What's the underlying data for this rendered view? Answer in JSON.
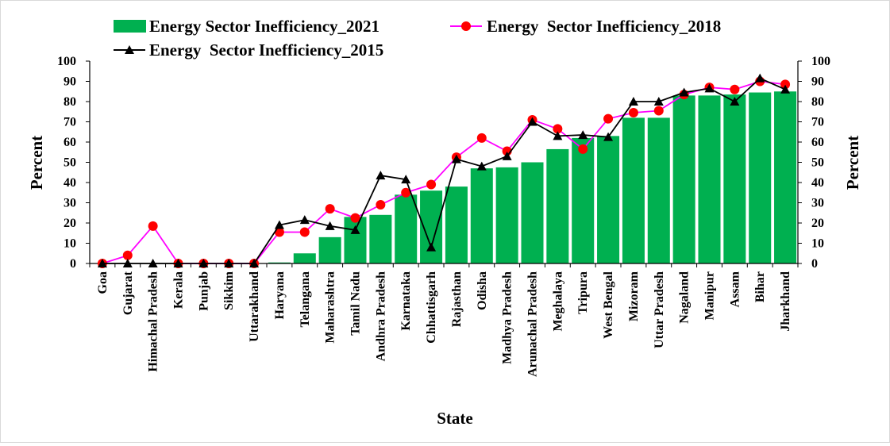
{
  "chart_data": {
    "type": "bar",
    "xlabel": "State",
    "ylabel": "Percent",
    "y2label": "Percent",
    "ylim": [
      0,
      100
    ],
    "yticks": [
      0,
      10,
      20,
      30,
      40,
      50,
      60,
      70,
      80,
      90,
      100
    ],
    "legend_position": "top",
    "grid": false,
    "categories": [
      "Goa",
      "Gujarat",
      "Himachal Pradesh",
      "Kerala",
      "Punjab",
      "Sikkim",
      "Uttarakhand",
      "Haryana",
      "Telangana",
      "Maharashtra",
      "Tamil Nadu",
      "Andhra Pradesh",
      "Karnataka",
      "Chhattisgarh",
      "Rajasthan",
      "Odisha",
      "Madhya Pradesh",
      "Arunachal Pradesh",
      "Meghalaya",
      "Tripura",
      "West Bengal",
      "Mizoram",
      "Uttar Pradesh",
      "Nagaland",
      "Manipur",
      "Assam",
      "Bihar",
      "Jharkhand"
    ],
    "series": [
      {
        "name": "Energy Sector Inefficiency_2021",
        "type": "bar",
        "color": "#00b050",
        "values": [
          0,
          0,
          0,
          0,
          0,
          0,
          0,
          0.5,
          5,
          13,
          23,
          24,
          34,
          36,
          38,
          47,
          47.5,
          50,
          56.5,
          62,
          63,
          72,
          72,
          83,
          83,
          83.5,
          84.5,
          85
        ]
      },
      {
        "name": "Energy  Sector Inefficiency_2018",
        "type": "line",
        "line_color": "#ff00ff",
        "marker_color": "#ff0000",
        "marker": "circle",
        "values": [
          0,
          4,
          18.5,
          0,
          0,
          0,
          0,
          15.5,
          15.5,
          27,
          22.5,
          29,
          35,
          39,
          52.5,
          62,
          55.5,
          71,
          66.5,
          56.5,
          71.5,
          74.5,
          75.5,
          83.5,
          87,
          86,
          90,
          88.5
        ]
      },
      {
        "name": "Energy  Sector Inefficiency_2015",
        "type": "line",
        "line_color": "#000000",
        "marker_color": "#000000",
        "marker": "triangle",
        "values": [
          0,
          0,
          0,
          0,
          0,
          0,
          0,
          19,
          21.5,
          18.5,
          16.5,
          43.5,
          41.5,
          8,
          51.5,
          48,
          53,
          70,
          63,
          63.5,
          62.5,
          80,
          80,
          84.5,
          86.5,
          80,
          91.5,
          86
        ]
      }
    ]
  }
}
